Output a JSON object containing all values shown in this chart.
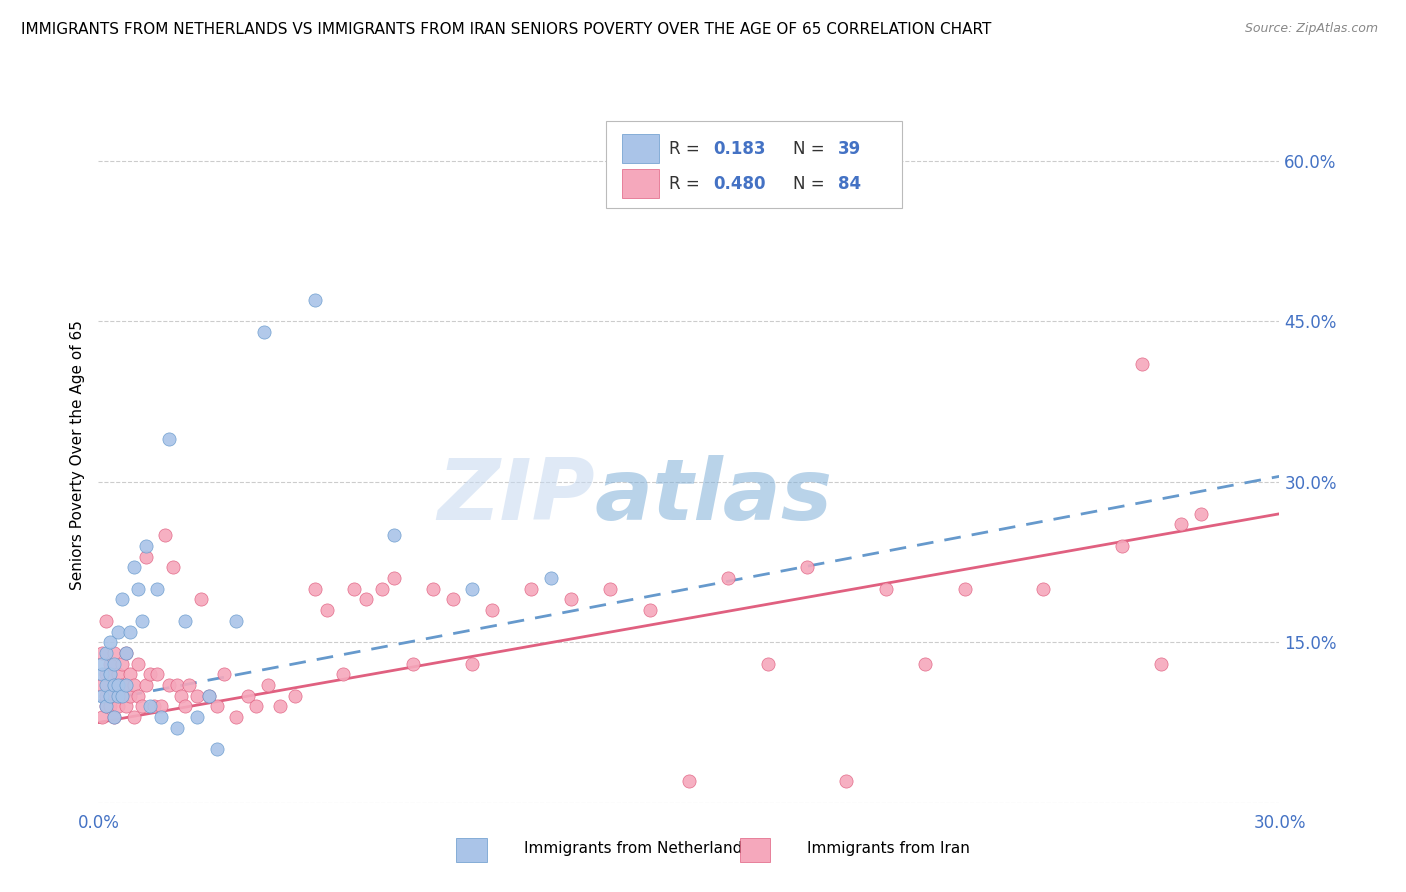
{
  "title": "IMMIGRANTS FROM NETHERLANDS VS IMMIGRANTS FROM IRAN SENIORS POVERTY OVER THE AGE OF 65 CORRELATION CHART",
  "source": "Source: ZipAtlas.com",
  "ylabel": "Seniors Poverty Over the Age of 65",
  "xlim": [
    0.0,
    0.3
  ],
  "ylim": [
    0.0,
    0.65
  ],
  "yticks_right": [
    0.0,
    0.15,
    0.3,
    0.45,
    0.6
  ],
  "ytick_labels_right": [
    "",
    "15.0%",
    "30.0%",
    "45.0%",
    "60.0%"
  ],
  "watermark_zip": "ZIP",
  "watermark_atlas": "atlas",
  "legend_label1": "Immigrants from Netherlands",
  "legend_label2": "Immigrants from Iran",
  "R1": 0.183,
  "N1": 39,
  "R2": 0.48,
  "N2": 84,
  "color_netherlands": "#aac4e8",
  "color_iran": "#f5a8bc",
  "line_color_netherlands": "#6699cc",
  "line_color_iran": "#e06080",
  "background_color": "#ffffff",
  "grid_color": "#cccccc",
  "axis_color": "#4472c4",
  "title_fontsize": 11,
  "netherlands_x": [
    0.001,
    0.001,
    0.001,
    0.002,
    0.002,
    0.002,
    0.003,
    0.003,
    0.003,
    0.004,
    0.004,
    0.004,
    0.005,
    0.005,
    0.005,
    0.006,
    0.006,
    0.007,
    0.007,
    0.008,
    0.009,
    0.01,
    0.011,
    0.012,
    0.013,
    0.015,
    0.016,
    0.018,
    0.02,
    0.022,
    0.025,
    0.028,
    0.03,
    0.035,
    0.042,
    0.055,
    0.075,
    0.095,
    0.115
  ],
  "netherlands_y": [
    0.1,
    0.12,
    0.13,
    0.09,
    0.11,
    0.14,
    0.1,
    0.12,
    0.15,
    0.08,
    0.11,
    0.13,
    0.1,
    0.16,
    0.11,
    0.1,
    0.19,
    0.14,
    0.11,
    0.16,
    0.22,
    0.2,
    0.17,
    0.24,
    0.09,
    0.2,
    0.08,
    0.34,
    0.07,
    0.17,
    0.08,
    0.1,
    0.05,
    0.17,
    0.44,
    0.47,
    0.25,
    0.2,
    0.21
  ],
  "iran_x": [
    0.001,
    0.001,
    0.001,
    0.002,
    0.002,
    0.002,
    0.002,
    0.003,
    0.003,
    0.003,
    0.003,
    0.004,
    0.004,
    0.004,
    0.005,
    0.005,
    0.005,
    0.006,
    0.006,
    0.006,
    0.007,
    0.007,
    0.007,
    0.008,
    0.008,
    0.009,
    0.009,
    0.01,
    0.01,
    0.011,
    0.012,
    0.012,
    0.013,
    0.014,
    0.015,
    0.016,
    0.017,
    0.018,
    0.019,
    0.02,
    0.021,
    0.022,
    0.023,
    0.025,
    0.026,
    0.028,
    0.03,
    0.032,
    0.035,
    0.038,
    0.04,
    0.043,
    0.046,
    0.05,
    0.055,
    0.058,
    0.062,
    0.065,
    0.068,
    0.072,
    0.075,
    0.08,
    0.085,
    0.09,
    0.095,
    0.1,
    0.11,
    0.12,
    0.13,
    0.14,
    0.15,
    0.16,
    0.17,
    0.18,
    0.19,
    0.2,
    0.21,
    0.22,
    0.24,
    0.26,
    0.265,
    0.27,
    0.275,
    0.28
  ],
  "iran_y": [
    0.08,
    0.11,
    0.14,
    0.09,
    0.12,
    0.1,
    0.17,
    0.1,
    0.12,
    0.09,
    0.13,
    0.11,
    0.08,
    0.14,
    0.1,
    0.12,
    0.09,
    0.11,
    0.1,
    0.13,
    0.09,
    0.14,
    0.11,
    0.1,
    0.12,
    0.11,
    0.08,
    0.1,
    0.13,
    0.09,
    0.11,
    0.23,
    0.12,
    0.09,
    0.12,
    0.09,
    0.25,
    0.11,
    0.22,
    0.11,
    0.1,
    0.09,
    0.11,
    0.1,
    0.19,
    0.1,
    0.09,
    0.12,
    0.08,
    0.1,
    0.09,
    0.11,
    0.09,
    0.1,
    0.2,
    0.18,
    0.12,
    0.2,
    0.19,
    0.2,
    0.21,
    0.13,
    0.2,
    0.19,
    0.13,
    0.18,
    0.2,
    0.19,
    0.2,
    0.18,
    0.02,
    0.21,
    0.13,
    0.22,
    0.02,
    0.2,
    0.13,
    0.2,
    0.2,
    0.24,
    0.41,
    0.13,
    0.26,
    0.27
  ]
}
